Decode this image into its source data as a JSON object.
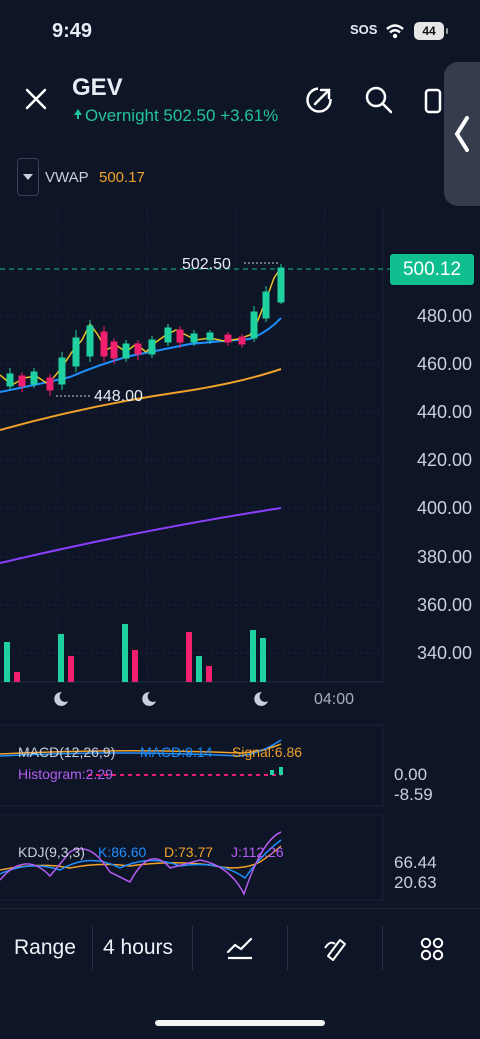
{
  "status": {
    "time": "9:49",
    "sos": "SOS",
    "battery": "44"
  },
  "header": {
    "ticker": "GEV",
    "subline": "Overnight 502.50 +3.61%"
  },
  "indicator": {
    "label": "VWAP",
    "value": "500.17"
  },
  "chart": {
    "price_axis": [
      "480.00",
      "460.00",
      "440.00",
      "420.00",
      "400.00",
      "380.00",
      "360.00",
      "340.00"
    ],
    "current_price": "500.12",
    "high_marker": "502.50",
    "low_marker": "448.00",
    "time_label": "04:00"
  },
  "macd": {
    "label": "MACD(12,26,9)",
    "macd": "MACD:9.14",
    "signal": "Signal:6.86",
    "histogram": "Histogram:2.29",
    "axis_top": "0.00",
    "axis_bottom": "-8.59"
  },
  "kdj": {
    "label": "KDJ(9,3,3)",
    "k": "K:86.60",
    "d": "D:73.77",
    "j": "J:112.26",
    "axis_top": "66.44",
    "axis_bottom": "20.63"
  },
  "toolbar": {
    "range": "Range",
    "interval": "4 hours"
  },
  "colors": {
    "up": "#1fd1a0",
    "down": "#f0206f",
    "vwap": "#f0a12a",
    "ma": "#1e90ff",
    "long_ma": "#8a3ffc",
    "accent": "#0fbf8f"
  }
}
